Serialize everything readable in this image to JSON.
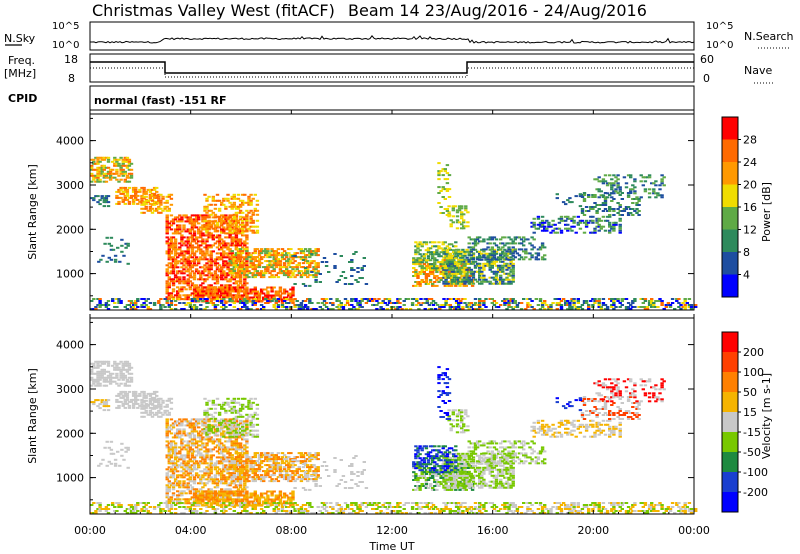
{
  "header": {
    "title": "Christmas Valley West (fitACF)",
    "beam_range": "Beam 14 23/Aug/2016 - 24/Aug/2016"
  },
  "status_panels": {
    "nsky_label": "N.Sky",
    "nsky_ticks": [
      "10^5",
      "10^0"
    ],
    "nsearch_label": "N.Search",
    "nsearch_ticks": [
      "10^5",
      "10^0"
    ],
    "freq_label": "Freq.",
    "freq_unit": "[MHz]",
    "freq_ticks": [
      "18",
      "8"
    ],
    "nave_label": "Nave",
    "nave_ticks": [
      "60",
      "0"
    ],
    "cpid_label": "CPID",
    "cpid_value": "normal (fast) -151 RF"
  },
  "colors": {
    "power_scale": [
      "#0000ff",
      "#1e4ea0",
      "#2e8a5c",
      "#5faa46",
      "#f0dc00",
      "#ff9900",
      "#ff6a00",
      "#ff0000"
    ],
    "velocity_scale": [
      "#0000ff",
      "#1a3fd0",
      "#1e8a40",
      "#78c800",
      "#c8c8c8",
      "#f5b400",
      "#ff8000",
      "#ff4000",
      "#ff0000"
    ],
    "ground_scatter": "#c8c8c8"
  },
  "chart_data": [
    {
      "type": "heatmap",
      "name": "Power",
      "ylabel": "Slant Range [km]",
      "yticks": [
        "4000",
        "3000",
        "2000",
        "1000"
      ],
      "ylim": [
        180,
        4600
      ],
      "colorbar_label": "Power [dB]",
      "colorbar_ticks": [
        "28",
        "24",
        "20",
        "16",
        "12",
        "8",
        "4"
      ],
      "colorbar_range": [
        0,
        32
      ]
    },
    {
      "type": "heatmap",
      "name": "Velocity",
      "ylabel": "Slant Range [km]",
      "yticks": [
        "4000",
        "3000",
        "2000",
        "1000"
      ],
      "ylim": [
        180,
        4600
      ],
      "colorbar_label": "Velocity [m s-1]",
      "colorbar_ticks": [
        "200",
        "100",
        "50",
        "15",
        "-15",
        "-50",
        "-100",
        "-200"
      ]
    }
  ],
  "xaxis": {
    "label": "Time UT",
    "ticks": [
      "00:00",
      "04:00",
      "08:00",
      "12:00",
      "16:00",
      "20:00",
      "00:00"
    ]
  }
}
